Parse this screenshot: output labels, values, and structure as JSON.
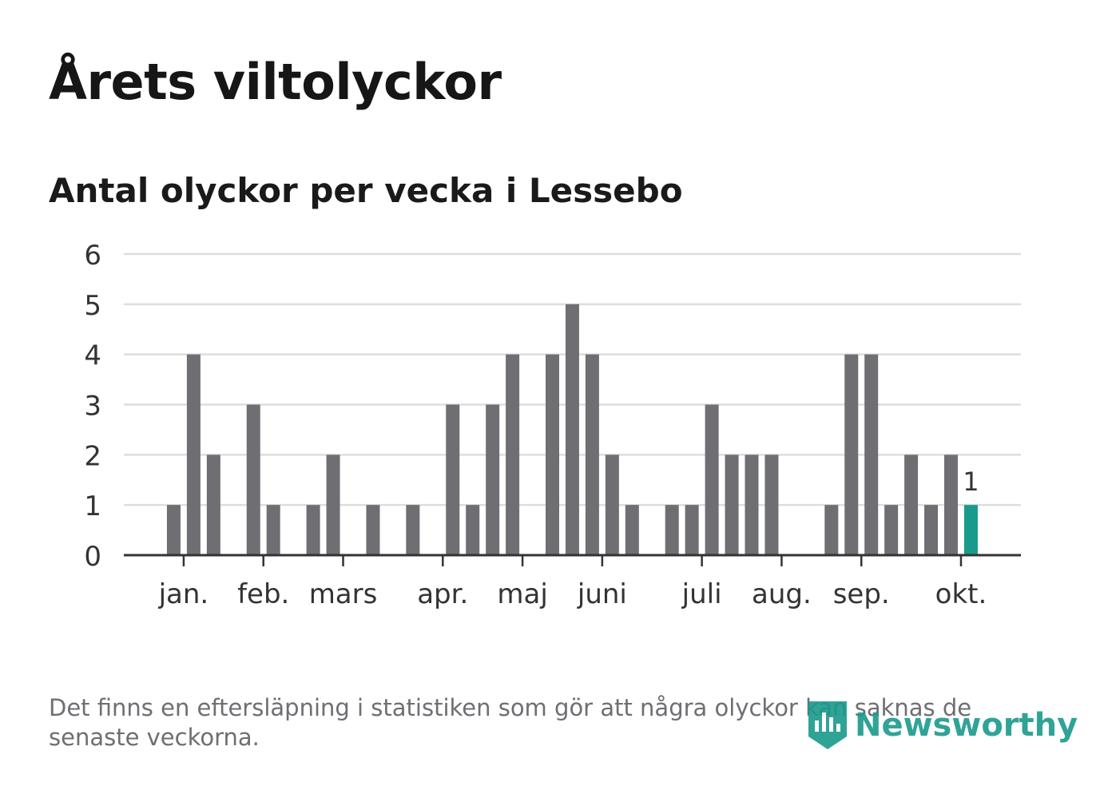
{
  "title": "Årets viltolyckor",
  "subtitle": "Antal olyckor per vecka i Lessebo",
  "footnote": "Det finns en eftersläpning i statistiken som gör att några olyckor kan saknas de senaste veckorna.",
  "logo": {
    "name": "Newsworthy",
    "icon": "newsworthy-logo-icon"
  },
  "colors": {
    "bar": "#6e6e73",
    "highlight": "#1a9a8c",
    "grid": "#dddddd",
    "axis": "#333333",
    "text": "#333333"
  },
  "chart_data": {
    "type": "bar",
    "title": "Antal olyckor per vecka i Lessebo",
    "xlabel": "",
    "ylabel": "",
    "ylim": [
      0,
      6
    ],
    "yticks": [
      "0",
      "1",
      "2",
      "3",
      "4",
      "5",
      "6"
    ],
    "grid": true,
    "weeks": [
      1,
      2,
      3,
      4,
      5,
      6,
      7,
      8,
      9,
      10,
      11,
      12,
      13,
      14,
      15,
      16,
      17,
      18,
      19,
      20,
      21,
      22,
      23,
      24,
      25,
      26,
      27,
      28,
      29,
      30,
      31,
      32,
      33,
      34,
      35,
      36,
      37,
      38,
      39,
      40,
      41,
      42
    ],
    "values": [
      0,
      1,
      4,
      2,
      0,
      3,
      1,
      0,
      1,
      2,
      0,
      1,
      0,
      1,
      0,
      3,
      1,
      3,
      4,
      0,
      4,
      5,
      4,
      2,
      1,
      0,
      1,
      1,
      3,
      2,
      2,
      2,
      0,
      0,
      1,
      4,
      4,
      1,
      2,
      1,
      2,
      1
    ],
    "highlight_index": 41,
    "highlight_label": "1",
    "month_ticks": [
      {
        "label": "jan.",
        "pos": 2.5
      },
      {
        "label": "feb.",
        "pos": 6.5
      },
      {
        "label": "mars",
        "pos": 10.5
      },
      {
        "label": "apr.",
        "pos": 15.5
      },
      {
        "label": "maj",
        "pos": 19.5
      },
      {
        "label": "juni",
        "pos": 23.5
      },
      {
        "label": "juli",
        "pos": 28.5
      },
      {
        "label": "aug.",
        "pos": 32.5
      },
      {
        "label": "sep.",
        "pos": 36.5
      },
      {
        "label": "okt.",
        "pos": 41.5
      }
    ]
  }
}
